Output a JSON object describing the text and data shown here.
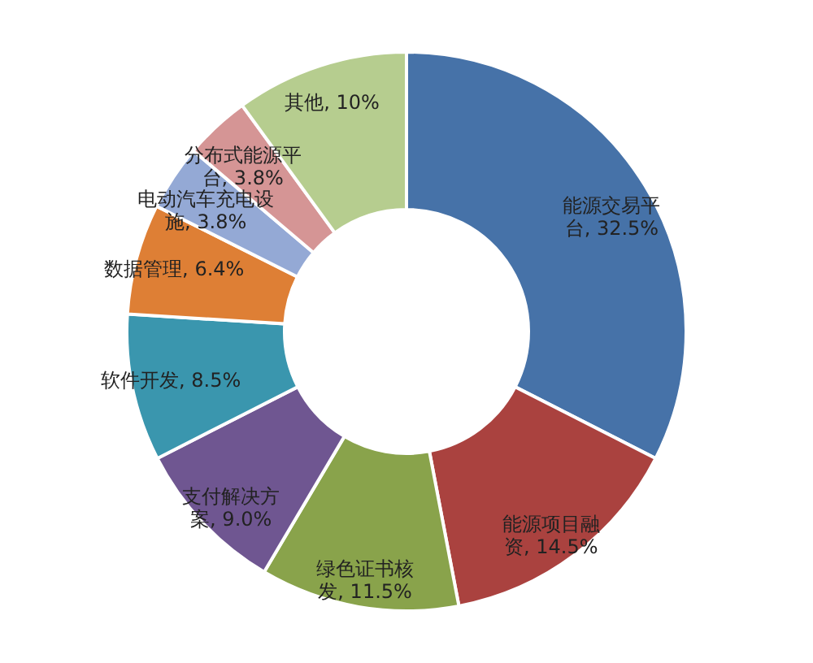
{
  "chart_data": {
    "type": "donut",
    "categories": [
      "能源交易平台",
      "能源项目融资",
      "绿色证书核发",
      "支付解决方案",
      "软件开发",
      "数据管理",
      "电动汽车充电设施",
      "分布式能源平台",
      "其他"
    ],
    "values": [
      32.5,
      14.5,
      11.5,
      9.0,
      8.5,
      6.4,
      3.8,
      3.8,
      10
    ],
    "value_labels": [
      "32.5%",
      "14.5%",
      "11.5%",
      "9.0%",
      "8.5%",
      "6.4%",
      "3.8%",
      "3.8%",
      "10%"
    ],
    "colors": [
      "#4672a8",
      "#aa423f",
      "#89a34b",
      "#6f5691",
      "#3a96ae",
      "#de7f35",
      "#94a9d5",
      "#d59595",
      "#b6cd8f"
    ],
    "legend": false
  }
}
